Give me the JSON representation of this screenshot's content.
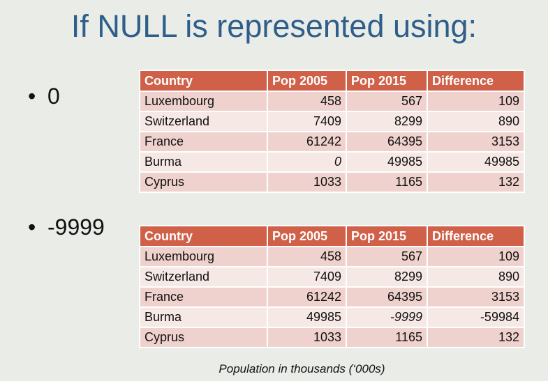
{
  "title": "If NULL is represented using:",
  "bullets": [
    {
      "symbol": "•",
      "text": "0"
    },
    {
      "symbol": "•",
      "text": "-9999"
    }
  ],
  "columns": [
    "Country",
    "Pop 2005",
    "Pop 2015",
    "Difference"
  ],
  "table1": {
    "rows": [
      {
        "country": "Luxembourg",
        "pop2005": "458",
        "pop2015": "567",
        "difference": "109"
      },
      {
        "country": "Switzerland",
        "pop2005": "7409",
        "pop2015": "8299",
        "difference": "890"
      },
      {
        "country": "France",
        "pop2005": "61242",
        "pop2015": "64395",
        "difference": "3153"
      },
      {
        "country": "Burma",
        "pop2005": "0",
        "pop2015": "49985",
        "difference": "49985"
      },
      {
        "country": "Cyprus",
        "pop2005": "1033",
        "pop2015": "1165",
        "difference": "132"
      }
    ]
  },
  "table2": {
    "rows": [
      {
        "country": "Luxembourg",
        "pop2005": "458",
        "pop2015": "567",
        "difference": "109"
      },
      {
        "country": "Switzerland",
        "pop2005": "7409",
        "pop2015": "8299",
        "difference": "890"
      },
      {
        "country": "France",
        "pop2005": "61242",
        "pop2015": "64395",
        "difference": "3153"
      },
      {
        "country": "Burma",
        "pop2005": "49985",
        "pop2015": "-9999",
        "difference": "-59984"
      },
      {
        "country": "Cyprus",
        "pop2005": "1033",
        "pop2015": "1165",
        "difference": "132"
      }
    ]
  },
  "caption": "Population in thousands (‘000s)"
}
